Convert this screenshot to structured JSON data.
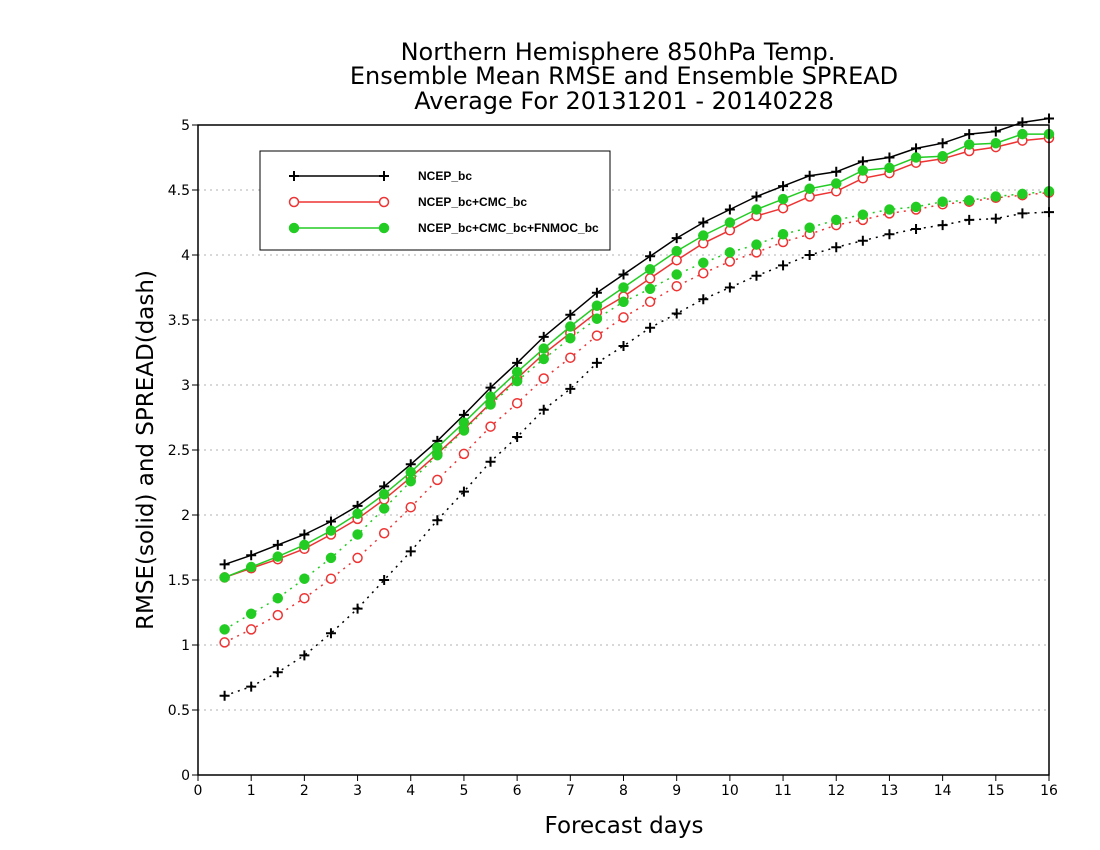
{
  "chart_data": {
    "type": "line",
    "title": [
      "Northern Hemisphere 850hPa Temp.",
      "Ensemble Mean RMSE and Ensemble SPREAD",
      "Average For 20131201 - 20140228"
    ],
    "xlabel": "Forecast days",
    "ylabel": "RMSE(solid) and SPREAD(dash)",
    "xlim": [
      0,
      16
    ],
    "ylim": [
      0,
      5
    ],
    "xticks": [
      0,
      1,
      2,
      3,
      4,
      5,
      6,
      7,
      8,
      9,
      10,
      11,
      12,
      13,
      14,
      15,
      16
    ],
    "yticks": [
      0,
      0.5,
      1,
      1.5,
      2,
      2.5,
      3,
      3.5,
      4,
      4.5,
      5
    ],
    "grid": true,
    "legend_position": "top-left",
    "x": [
      0.5,
      1,
      1.5,
      2,
      2.5,
      3,
      3.5,
      4,
      4.5,
      5,
      5.5,
      6,
      6.5,
      7,
      7.5,
      8,
      8.5,
      9,
      9.5,
      10,
      10.5,
      11,
      11.5,
      12,
      12.5,
      13,
      13.5,
      14,
      14.5,
      15,
      15.5,
      16
    ],
    "series": [
      {
        "name": "NCEP_bc",
        "metric": "RMSE",
        "style": "solid",
        "marker": "plus",
        "color": "#000000",
        "values": [
          1.62,
          1.69,
          1.77,
          1.85,
          1.95,
          2.07,
          2.22,
          2.39,
          2.57,
          2.77,
          2.98,
          3.17,
          3.37,
          3.54,
          3.71,
          3.85,
          3.99,
          4.13,
          4.25,
          4.35,
          4.45,
          4.53,
          4.61,
          4.64,
          4.72,
          4.75,
          4.82,
          4.86,
          4.93,
          4.95,
          5.02,
          5.05
        ]
      },
      {
        "name": "NCEP_bc+CMC_bc",
        "metric": "RMSE",
        "style": "solid",
        "marker": "open-circle",
        "color": "#ee3333",
        "values": [
          1.52,
          1.59,
          1.66,
          1.74,
          1.85,
          1.97,
          2.12,
          2.29,
          2.47,
          2.66,
          2.86,
          3.05,
          3.24,
          3.4,
          3.56,
          3.68,
          3.82,
          3.96,
          4.09,
          4.19,
          4.3,
          4.36,
          4.45,
          4.49,
          4.59,
          4.63,
          4.71,
          4.74,
          4.8,
          4.83,
          4.88,
          4.9
        ]
      },
      {
        "name": "NCEP_bc+CMC_bc+FNMOC_bc",
        "metric": "RMSE",
        "style": "solid",
        "marker": "filled-circle",
        "color": "#22cc22",
        "values": [
          1.52,
          1.6,
          1.68,
          1.77,
          1.88,
          2.01,
          2.16,
          2.33,
          2.52,
          2.71,
          2.91,
          3.1,
          3.28,
          3.45,
          3.61,
          3.75,
          3.89,
          4.03,
          4.15,
          4.25,
          4.35,
          4.43,
          4.51,
          4.55,
          4.65,
          4.67,
          4.75,
          4.76,
          4.85,
          4.86,
          4.93,
          4.93
        ]
      },
      {
        "name": "NCEP_bc",
        "metric": "SPREAD",
        "style": "dash",
        "marker": "plus",
        "color": "#000000",
        "values": [
          0.61,
          0.68,
          0.79,
          0.92,
          1.09,
          1.28,
          1.5,
          1.72,
          1.96,
          2.18,
          2.41,
          2.6,
          2.81,
          2.97,
          3.17,
          3.3,
          3.44,
          3.55,
          3.66,
          3.75,
          3.84,
          3.92,
          4.0,
          4.06,
          4.11,
          4.16,
          4.2,
          4.23,
          4.27,
          4.28,
          4.32,
          4.33
        ]
      },
      {
        "name": "NCEP_bc+CMC_bc",
        "metric": "SPREAD",
        "style": "dash",
        "marker": "open-circle",
        "color": "#ee3333",
        "values": [
          1.02,
          1.12,
          1.23,
          1.36,
          1.51,
          1.67,
          1.86,
          2.06,
          2.27,
          2.47,
          2.68,
          2.86,
          3.05,
          3.21,
          3.38,
          3.52,
          3.64,
          3.76,
          3.86,
          3.95,
          4.02,
          4.1,
          4.16,
          4.23,
          4.27,
          4.32,
          4.35,
          4.39,
          4.41,
          4.44,
          4.46,
          4.48
        ]
      },
      {
        "name": "NCEP_bc+CMC_bc+FNMOC_bc",
        "metric": "SPREAD",
        "style": "dash",
        "marker": "filled-circle",
        "color": "#22cc22",
        "values": [
          1.12,
          1.24,
          1.36,
          1.51,
          1.67,
          1.85,
          2.05,
          2.26,
          2.46,
          2.65,
          2.85,
          3.03,
          3.2,
          3.36,
          3.51,
          3.64,
          3.74,
          3.85,
          3.94,
          4.02,
          4.08,
          4.16,
          4.21,
          4.27,
          4.31,
          4.35,
          4.37,
          4.41,
          4.42,
          4.45,
          4.47,
          4.49
        ]
      }
    ],
    "legend": [
      {
        "label": "NCEP_bc",
        "marker": "plus",
        "color": "#000000"
      },
      {
        "label": "NCEP_bc+CMC_bc",
        "marker": "open-circle",
        "color": "#ee3333"
      },
      {
        "label": "NCEP_bc+CMC_bc+FNMOC_bc",
        "marker": "filled-circle",
        "color": "#22cc22"
      }
    ]
  }
}
